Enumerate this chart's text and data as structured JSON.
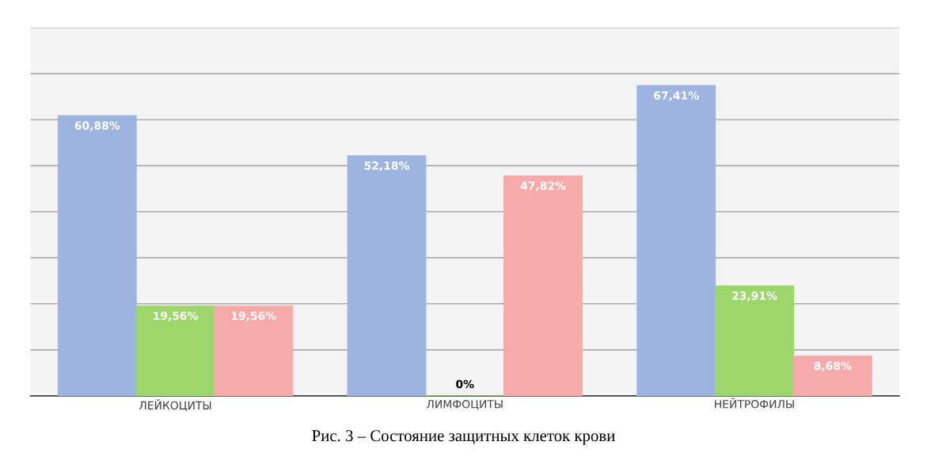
{
  "chart_data": {
    "type": "bar",
    "categories": [
      "ЛЕЙКОЦИТЫ",
      "ЛИМФОЦИТЫ",
      "НЕЙТРОФИЛЫ"
    ],
    "series": [
      {
        "color": "#9db4e0",
        "values": [
          60.88,
          52.18,
          67.41
        ],
        "value_labels": [
          "60,88%",
          "52,18%",
          "67,41%"
        ]
      },
      {
        "color": "#9dd66b",
        "values": [
          19.56,
          0,
          23.91
        ],
        "value_labels": [
          "19,56%",
          "0%",
          "23,91%"
        ]
      },
      {
        "color": "#f8aaaa",
        "values": [
          19.56,
          47.82,
          8.68
        ],
        "value_labels": [
          "19,56%",
          "47,82%",
          "8,68%"
        ]
      }
    ],
    "ylim": [
      0,
      80
    ],
    "yticks": [
      {
        "value": 0,
        "label": null
      },
      {
        "value": 10,
        "label": null
      },
      {
        "value": 20,
        "label": null
      },
      {
        "value": 30,
        "label": null
      },
      {
        "value": 40,
        "label": null
      },
      {
        "value": 50,
        "label": null
      },
      {
        "value": 60,
        "label": null
      },
      {
        "value": 70,
        "label": null
      },
      {
        "value": 80,
        "label": null
      }
    ],
    "tick_labels": "x",
    "grid": "y",
    "legend": false,
    "annotations": [
      "Рис. 3 – Состояние защитных клеток крови"
    ]
  }
}
